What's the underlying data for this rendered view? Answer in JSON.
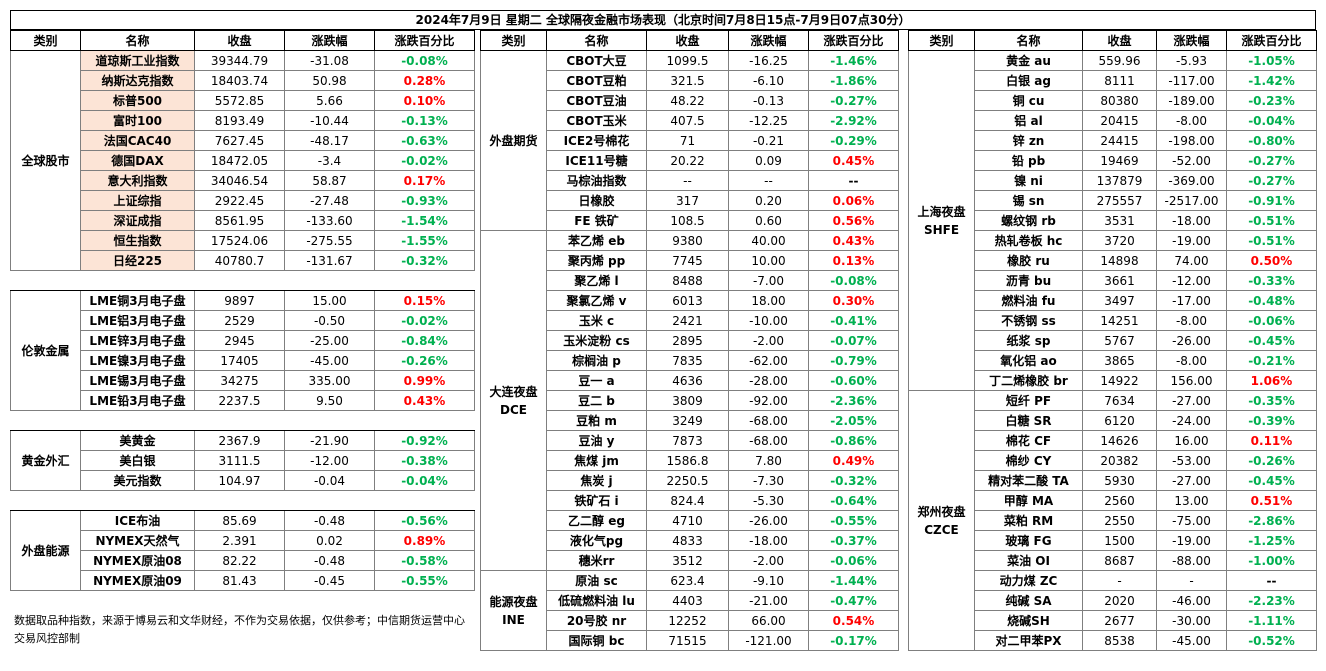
{
  "title": "2024年7月9日 星期二 全球隔夜金融市场表现（北京时间7月8日15点-7月9日07点30分）",
  "headers": [
    "类别",
    "名称",
    "收盘",
    "涨跌幅",
    "涨跌百分比"
  ],
  "colors": {
    "up": "#ff0000",
    "down": "#00b050",
    "highlight": "#fce4d6"
  },
  "note": "数据取品种指数，来源于博易云和文华财经，不作为交易依据，仅供参考；中信期货运营中心交易风控部制",
  "left": {
    "groups": [
      {
        "category": "全球股市",
        "rows": [
          [
            "道琼斯工业指数",
            "39344.79",
            "-31.08",
            "-0.08%"
          ],
          [
            "纳斯达克指数",
            "18403.74",
            "50.98",
            "0.28%"
          ],
          [
            "标普500",
            "5572.85",
            "5.66",
            "0.10%"
          ],
          [
            "富时100",
            "8193.49",
            "-10.44",
            "-0.13%"
          ],
          [
            "法国CAC40",
            "7627.45",
            "-48.17",
            "-0.63%"
          ],
          [
            "德国DAX",
            "18472.05",
            "-3.4",
            "-0.02%"
          ],
          [
            "意大利指数",
            "34046.54",
            "58.87",
            "0.17%"
          ],
          [
            "上证综指",
            "2922.45",
            "-27.48",
            "-0.93%"
          ],
          [
            "深证成指",
            "8561.95",
            "-133.60",
            "-1.54%"
          ],
          [
            "恒生指数",
            "17524.06",
            "-275.55",
            "-1.55%"
          ],
          [
            "日经225",
            "40780.7",
            "-131.67",
            "-0.32%"
          ]
        ]
      },
      {
        "category": "伦敦金属",
        "rows": [
          [
            "LME铜3月电子盘",
            "9897",
            "15.00",
            "0.15%"
          ],
          [
            "LME铝3月电子盘",
            "2529",
            "-0.50",
            "-0.02%"
          ],
          [
            "LME锌3月电子盘",
            "2945",
            "-25.00",
            "-0.84%"
          ],
          [
            "LME镍3月电子盘",
            "17405",
            "-45.00",
            "-0.26%"
          ],
          [
            "LME锡3月电子盘",
            "34275",
            "335.00",
            "0.99%"
          ],
          [
            "LME铅3月电子盘",
            "2237.5",
            "9.50",
            "0.43%"
          ]
        ]
      },
      {
        "category": "黄金外汇",
        "rows": [
          [
            "美黄金",
            "2367.9",
            "-21.90",
            "-0.92%"
          ],
          [
            "美白银",
            "3111.5",
            "-12.00",
            "-0.38%"
          ],
          [
            "美元指数",
            "104.97",
            "-0.04",
            "-0.04%"
          ]
        ]
      },
      {
        "category": "外盘能源",
        "rows": [
          [
            "ICE布油",
            "85.69",
            "-0.48",
            "-0.56%"
          ],
          [
            "NYMEX天然气",
            "2.391",
            "0.02",
            "0.89%"
          ],
          [
            "NYMEX原油08",
            "82.22",
            "-0.48",
            "-0.58%"
          ],
          [
            "NYMEX原油09",
            "81.43",
            "-0.45",
            "-0.55%"
          ]
        ]
      }
    ]
  },
  "middle": {
    "groups": [
      {
        "category": "外盘期货",
        "rows": [
          [
            "CBOT大豆",
            "1099.5",
            "-16.25",
            "-1.46%"
          ],
          [
            "CBOT豆粕",
            "321.5",
            "-6.10",
            "-1.86%"
          ],
          [
            "CBOT豆油",
            "48.22",
            "-0.13",
            "-0.27%"
          ],
          [
            "CBOT玉米",
            "407.5",
            "-12.25",
            "-2.92%"
          ],
          [
            "ICE2号棉花",
            "71",
            "-0.21",
            "-0.29%"
          ],
          [
            "ICE11号糖",
            "20.22",
            "0.09",
            "0.45%"
          ],
          [
            "马棕油指数",
            "--",
            "--",
            "--"
          ],
          [
            "日橡胶",
            "317",
            "0.20",
            "0.06%"
          ],
          [
            "FE 铁矿",
            "108.5",
            "0.60",
            "0.56%"
          ]
        ]
      },
      {
        "category": "大连夜盘\nDCE",
        "rows": [
          [
            "苯乙烯 eb",
            "9380",
            "40.00",
            "0.43%"
          ],
          [
            "聚丙烯 pp",
            "7745",
            "10.00",
            "0.13%"
          ],
          [
            "聚乙烯 l",
            "8488",
            "-7.00",
            "-0.08%"
          ],
          [
            "聚氯乙烯 v",
            "6013",
            "18.00",
            "0.30%"
          ],
          [
            "玉米 c",
            "2421",
            "-10.00",
            "-0.41%"
          ],
          [
            "玉米淀粉 cs",
            "2895",
            "-2.00",
            "-0.07%"
          ],
          [
            "棕榈油 p",
            "7835",
            "-62.00",
            "-0.79%"
          ],
          [
            "豆一 a",
            "4636",
            "-28.00",
            "-0.60%"
          ],
          [
            "豆二 b",
            "3809",
            "-92.00",
            "-2.36%"
          ],
          [
            "豆粕 m",
            "3249",
            "-68.00",
            "-2.05%"
          ],
          [
            "豆油 y",
            "7873",
            "-68.00",
            "-0.86%"
          ],
          [
            "焦煤 jm",
            "1586.8",
            "7.80",
            "0.49%"
          ],
          [
            "焦炭 j",
            "2250.5",
            "-7.30",
            "-0.32%"
          ],
          [
            "铁矿石 i",
            "824.4",
            "-5.30",
            "-0.64%"
          ],
          [
            "乙二醇 eg",
            "4710",
            "-26.00",
            "-0.55%"
          ],
          [
            "液化气pg",
            "4833",
            "-18.00",
            "-0.37%"
          ],
          [
            "穗米rr",
            "3512",
            "-2.00",
            "-0.06%"
          ]
        ]
      },
      {
        "category": "能源夜盘\nINE",
        "rows": [
          [
            "原油 sc",
            "623.4",
            "-9.10",
            "-1.44%"
          ],
          [
            "低硫燃料油 lu",
            "4403",
            "-21.00",
            "-0.47%"
          ],
          [
            "20号胶 nr",
            "12252",
            "66.00",
            "0.54%"
          ],
          [
            "国际铜 bc",
            "71515",
            "-121.00",
            "-0.17%"
          ]
        ]
      }
    ]
  },
  "right": {
    "groups": [
      {
        "category": "上海夜盘\nSHFE",
        "rows": [
          [
            "黄金 au",
            "559.96",
            "-5.93",
            "-1.05%"
          ],
          [
            "白银 ag",
            "8111",
            "-117.00",
            "-1.42%"
          ],
          [
            "铜 cu",
            "80380",
            "-189.00",
            "-0.23%"
          ],
          [
            "铝 al",
            "20415",
            "-8.00",
            "-0.04%"
          ],
          [
            "锌 zn",
            "24415",
            "-198.00",
            "-0.80%"
          ],
          [
            "铅 pb",
            "19469",
            "-52.00",
            "-0.27%"
          ],
          [
            "镍 ni",
            "137879",
            "-369.00",
            "-0.27%"
          ],
          [
            "锡 sn",
            "275557",
            "-2517.00",
            "-0.91%"
          ],
          [
            "螺纹钢 rb",
            "3531",
            "-18.00",
            "-0.51%"
          ],
          [
            "热轧卷板 hc",
            "3720",
            "-19.00",
            "-0.51%"
          ],
          [
            "橡胶 ru",
            "14898",
            "74.00",
            "0.50%"
          ],
          [
            "沥青 bu",
            "3661",
            "-12.00",
            "-0.33%"
          ],
          [
            "燃料油 fu",
            "3497",
            "-17.00",
            "-0.48%"
          ],
          [
            "不锈钢 ss",
            "14251",
            "-8.00",
            "-0.06%"
          ],
          [
            "纸浆 sp",
            "5767",
            "-26.00",
            "-0.45%"
          ],
          [
            "氧化铝 ao",
            "3865",
            "-8.00",
            "-0.21%"
          ],
          [
            "丁二烯橡胶 br",
            "14922",
            "156.00",
            "1.06%"
          ]
        ]
      },
      {
        "category": "郑州夜盘\nCZCE",
        "rows": [
          [
            "短纤 PF",
            "7634",
            "-27.00",
            "-0.35%"
          ],
          [
            "白糖 SR",
            "6120",
            "-24.00",
            "-0.39%"
          ],
          [
            "棉花 CF",
            "14626",
            "16.00",
            "0.11%"
          ],
          [
            "棉纱 CY",
            "20382",
            "-53.00",
            "-0.26%"
          ],
          [
            "精对苯二酸 TA",
            "5930",
            "-27.00",
            "-0.45%"
          ],
          [
            "甲醇 MA",
            "2560",
            "13.00",
            "0.51%"
          ],
          [
            "菜粕 RM",
            "2550",
            "-75.00",
            "-2.86%"
          ],
          [
            "玻璃 FG",
            "1500",
            "-19.00",
            "-1.25%"
          ],
          [
            "菜油 OI",
            "8687",
            "-88.00",
            "-1.00%"
          ],
          [
            "动力煤 ZC",
            "-",
            "-",
            "--"
          ],
          [
            "纯碱 SA",
            "2020",
            "-46.00",
            "-2.23%"
          ],
          [
            "烧碱SH",
            "2677",
            "-30.00",
            "-1.11%"
          ],
          [
            "对二甲苯PX",
            "8538",
            "-45.00",
            "-0.52%"
          ]
        ]
      }
    ]
  }
}
